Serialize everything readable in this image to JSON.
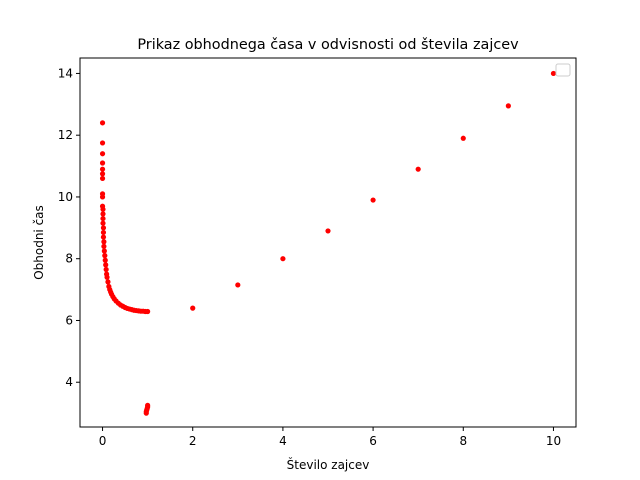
{
  "chart_data": {
    "type": "scatter",
    "title": "Prikaz obhodnega časa v odvisnosti od števila zajcev",
    "xlabel": "Število zajcev",
    "ylabel": "Obhodni čas",
    "xlim": [
      -0.5,
      10.5
    ],
    "ylim": [
      2.55,
      14.5
    ],
    "xticks": [
      0,
      2,
      4,
      6,
      8,
      10
    ],
    "yticks": [
      4,
      6,
      8,
      10,
      12,
      14
    ],
    "grid": false,
    "legend": {
      "placement": "top-right",
      "entries": [
        ""
      ]
    },
    "marker_color": "#ff0000",
    "series": [
      {
        "name": "",
        "points": [
          [
            0.0,
            12.4
          ],
          [
            0.0,
            11.75
          ],
          [
            0.0,
            11.4
          ],
          [
            0.0,
            11.1
          ],
          [
            0.0,
            10.9
          ],
          [
            0.0,
            10.75
          ],
          [
            0.0,
            10.6
          ],
          [
            0.0,
            10.1
          ],
          [
            0.0,
            10.0
          ],
          [
            0.0,
            9.7
          ],
          [
            0.01,
            9.6
          ],
          [
            0.01,
            9.45
          ],
          [
            0.01,
            9.3
          ],
          [
            0.01,
            9.15
          ],
          [
            0.02,
            9.0
          ],
          [
            0.02,
            8.85
          ],
          [
            0.02,
            8.7
          ],
          [
            0.03,
            8.55
          ],
          [
            0.03,
            8.4
          ],
          [
            0.04,
            8.25
          ],
          [
            0.05,
            8.1
          ],
          [
            0.06,
            7.95
          ],
          [
            0.07,
            7.8
          ],
          [
            0.08,
            7.65
          ],
          [
            0.09,
            7.5
          ],
          [
            0.1,
            7.4
          ],
          [
            0.12,
            7.25
          ],
          [
            0.14,
            7.1
          ],
          [
            0.16,
            7.0
          ],
          [
            0.18,
            6.92
          ],
          [
            0.2,
            6.85
          ],
          [
            0.23,
            6.77
          ],
          [
            0.26,
            6.7
          ],
          [
            0.3,
            6.63
          ],
          [
            0.35,
            6.56
          ],
          [
            0.4,
            6.5
          ],
          [
            0.45,
            6.46
          ],
          [
            0.5,
            6.42
          ],
          [
            0.55,
            6.39
          ],
          [
            0.6,
            6.37
          ],
          [
            0.65,
            6.35
          ],
          [
            0.7,
            6.33
          ],
          [
            0.75,
            6.32
          ],
          [
            0.8,
            6.31
          ],
          [
            0.85,
            6.3
          ],
          [
            0.9,
            6.3
          ],
          [
            0.95,
            6.29
          ],
          [
            1.0,
            6.29
          ],
          [
            0.97,
            3.0
          ],
          [
            0.97,
            3.05
          ],
          [
            0.98,
            3.1
          ],
          [
            0.99,
            3.15
          ],
          [
            1.0,
            3.2
          ],
          [
            1.0,
            3.25
          ],
          [
            2.0,
            6.4
          ],
          [
            3.0,
            7.15
          ],
          [
            4.0,
            8.0
          ],
          [
            5.0,
            8.9
          ],
          [
            6.0,
            9.9
          ],
          [
            7.0,
            10.9
          ],
          [
            8.0,
            11.9
          ],
          [
            9.0,
            12.95
          ],
          [
            10.0,
            14.0
          ]
        ]
      }
    ]
  }
}
